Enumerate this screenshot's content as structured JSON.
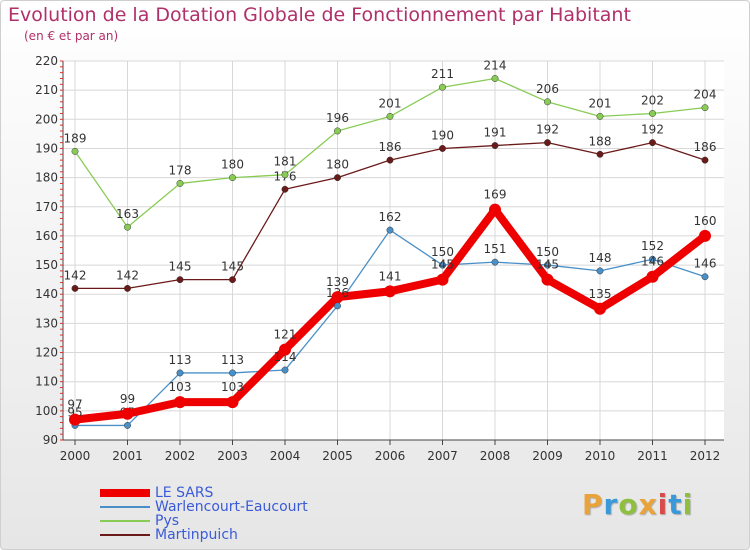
{
  "header": {
    "title": "Evolution de la Dotation Globale de Fonctionnement par Habitant",
    "subtitle": "(en € et par an)"
  },
  "brand": {
    "letters": [
      "P",
      "r",
      "o",
      "x",
      "i",
      "t",
      "i"
    ],
    "colors": [
      "#e8a33a",
      "#3a9ad9",
      "#8fbf3f",
      "#e8a33a",
      "#d94a4a",
      "#3a9ad9",
      "#8fbf3f"
    ]
  },
  "chart_data": {
    "type": "line",
    "title": "Evolution de la Dotation Globale de Fonctionnement par Habitant",
    "subtitle": "(en € et par an)",
    "xlabel": "",
    "ylabel": "",
    "x": [
      "2000",
      "2001",
      "2002",
      "2003",
      "2004",
      "2005",
      "2006",
      "2007",
      "2008",
      "2009",
      "2010",
      "2011",
      "2012"
    ],
    "ylim": [
      90,
      220
    ],
    "yticks": [
      90,
      100,
      110,
      120,
      130,
      140,
      150,
      160,
      170,
      180,
      190,
      200,
      210,
      220
    ],
    "grid": true,
    "legend_position": "bottom-left",
    "series": [
      {
        "name": "LE SARS",
        "color": "#ee0000",
        "values": [
          97,
          99,
          103,
          103,
          121,
          139,
          141,
          145,
          169,
          145,
          135,
          146,
          160
        ]
      },
      {
        "name": "Warlencourt-Eaucourt",
        "color": "#4a90c8",
        "values": [
          95,
          95,
          113,
          113,
          114,
          136,
          162,
          150,
          151,
          150,
          148,
          152,
          146
        ]
      },
      {
        "name": "Pys",
        "color": "#88cc55",
        "values": [
          189,
          163,
          178,
          180,
          181,
          196,
          201,
          211,
          214,
          206,
          201,
          202,
          204
        ]
      },
      {
        "name": "Martinpuich",
        "color": "#6b1a1a",
        "values": [
          142,
          142,
          145,
          145,
          176,
          180,
          186,
          190,
          191,
          192,
          188,
          192,
          186
        ]
      }
    ]
  }
}
